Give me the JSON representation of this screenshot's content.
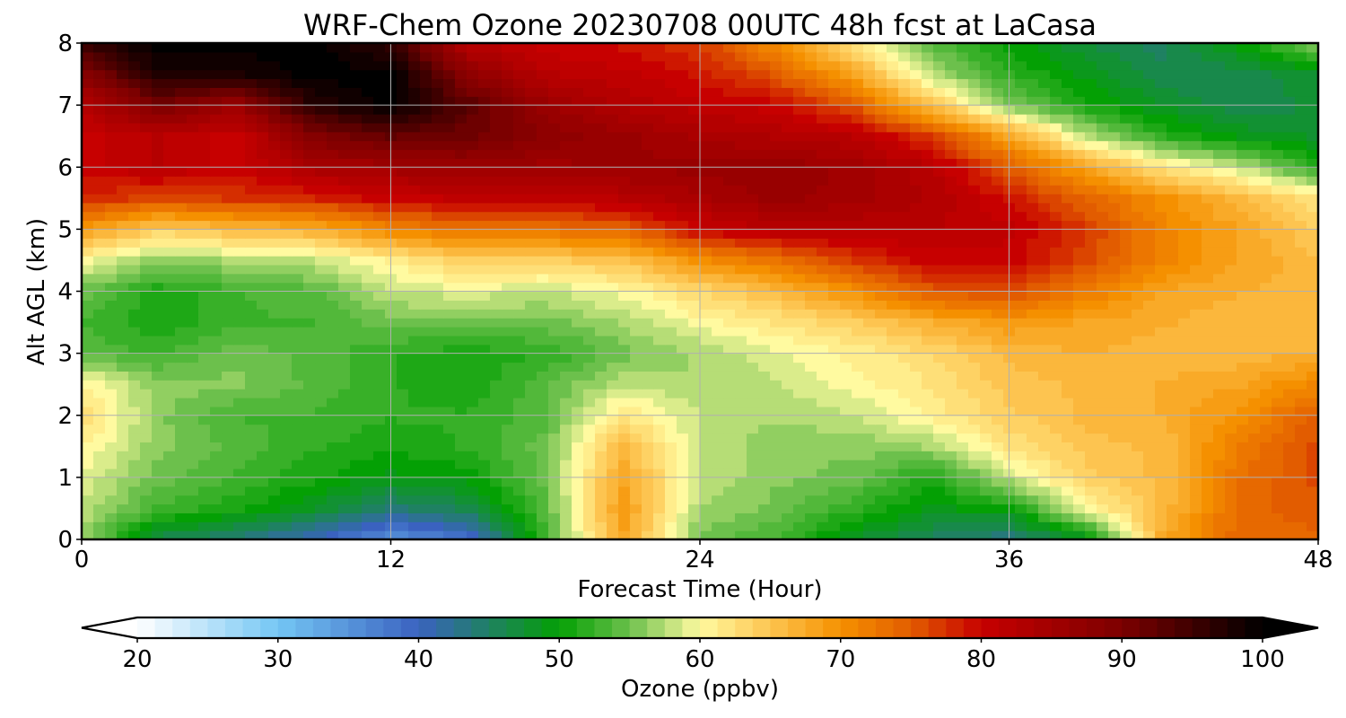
{
  "chart_data": {
    "type": "heatmap",
    "title": "WRF-Chem Ozone  20230708 00UTC 48h fcst at LaCasa",
    "xlabel": "Forecast Time (Hour)",
    "ylabel": "Alt AGL (km)",
    "xlim": [
      0,
      48
    ],
    "ylim": [
      0,
      8
    ],
    "x_ticks": [
      0,
      12,
      24,
      36,
      48
    ],
    "y_ticks": [
      0,
      1,
      2,
      3,
      4,
      5,
      6,
      7,
      8
    ],
    "grid": true,
    "colorbar": {
      "label": "Ozone  (ppbv)",
      "min": 20,
      "max": 100,
      "ticks": [
        20,
        30,
        40,
        50,
        60,
        70,
        80,
        90,
        100
      ],
      "extend": "both",
      "colors": [
        {
          "v": 20,
          "c": "#ffffff"
        },
        {
          "v": 30,
          "c": "#74c6f4"
        },
        {
          "v": 40,
          "c": "#3a62c0"
        },
        {
          "v": 50,
          "c": "#04a004"
        },
        {
          "v": 55,
          "c": "#6cc04c"
        },
        {
          "v": 60,
          "c": "#fffaa0"
        },
        {
          "v": 65,
          "c": "#fdc450"
        },
        {
          "v": 70,
          "c": "#f59000"
        },
        {
          "v": 75,
          "c": "#e25c00"
        },
        {
          "v": 80,
          "c": "#c70000"
        },
        {
          "v": 90,
          "c": "#7c0000"
        },
        {
          "v": 100,
          "c": "#000000"
        }
      ]
    },
    "x": [
      0,
      3,
      6,
      9,
      12,
      15,
      18,
      21,
      24,
      27,
      30,
      33,
      36,
      39,
      42,
      45,
      48
    ],
    "y": [
      0,
      0.5,
      1,
      1.5,
      2,
      2.5,
      3,
      3.5,
      4,
      4.5,
      5,
      5.5,
      6,
      6.5,
      7,
      7.5,
      8
    ],
    "z": [
      [
        57,
        46,
        44,
        40,
        35,
        38,
        53,
        68,
        55,
        53,
        48,
        45,
        43,
        48,
        68,
        74,
        74
      ],
      [
        58,
        53,
        51,
        48,
        44,
        46,
        54,
        69,
        57,
        55,
        52,
        49,
        50,
        60,
        66,
        74,
        75
      ],
      [
        59,
        55,
        53,
        51,
        49,
        50,
        55,
        68,
        58,
        56,
        55,
        51,
        58,
        64,
        66,
        73,
        76
      ],
      [
        61,
        56,
        54,
        52,
        51,
        52,
        55,
        66,
        58,
        56,
        56,
        57,
        62,
        65,
        66,
        72,
        76
      ],
      [
        63,
        56,
        53,
        53,
        52,
        52,
        54,
        62,
        58,
        57,
        58,
        61,
        64,
        66,
        67,
        70,
        75
      ],
      [
        61,
        56,
        56,
        54,
        52,
        51,
        54,
        58,
        57,
        58,
        60,
        62,
        65,
        66,
        67,
        68,
        71
      ],
      [
        54,
        53,
        55,
        54,
        52,
        51,
        52,
        55,
        57,
        59,
        61,
        63,
        66,
        67,
        66,
        66,
        67
      ],
      [
        53,
        51,
        53,
        53,
        55,
        55,
        55,
        57,
        60,
        62,
        64,
        67,
        69,
        68,
        67,
        66,
        66
      ],
      [
        55,
        51,
        53,
        54,
        58,
        59,
        58,
        60,
        63,
        66,
        70,
        75,
        76,
        72,
        68,
        67,
        66
      ],
      [
        60,
        56,
        57,
        58,
        61,
        64,
        64,
        65,
        70,
        73,
        77,
        80,
        80,
        76,
        71,
        68,
        66
      ],
      [
        69,
        64,
        66,
        67,
        71,
        73,
        73,
        74,
        80,
        82,
        82,
        82,
        81,
        77,
        71,
        68,
        64
      ],
      [
        78,
        76,
        77,
        78,
        80,
        81,
        81,
        82,
        84,
        86,
        85,
        83,
        79,
        74,
        70,
        66,
        62
      ],
      [
        80,
        82,
        80,
        84,
        85,
        86,
        85,
        86,
        86,
        87,
        85,
        82,
        75,
        68,
        62,
        58,
        52
      ],
      [
        80,
        82,
        80,
        89,
        92,
        91,
        88,
        86,
        84,
        83,
        82,
        77,
        68,
        58,
        52,
        49,
        48
      ],
      [
        82,
        90,
        86,
        97,
        100,
        93,
        86,
        83,
        81,
        80,
        75,
        65,
        56,
        51,
        48,
        46,
        47
      ],
      [
        88,
        98,
        98,
        100,
        100,
        88,
        82,
        81,
        79,
        75,
        68,
        58,
        52,
        49,
        46,
        46,
        48
      ],
      [
        96,
        100,
        100,
        100,
        96,
        82,
        80,
        79,
        77,
        70,
        62,
        54,
        50,
        47,
        45,
        50,
        56
      ]
    ]
  }
}
